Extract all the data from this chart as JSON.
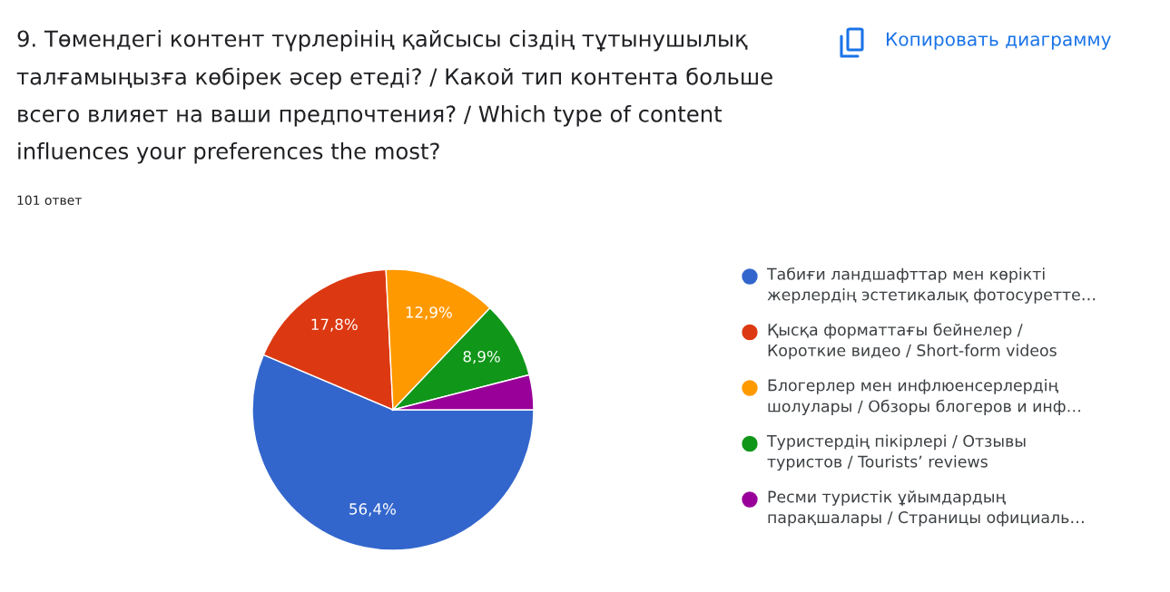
{
  "chart_data": {
    "type": "pie",
    "title": "9. Төмендегі контент түрлерінің қайсысы сіздің тұтынушылық талғамыңызға көбірек әсер етеді? / Какой тип контента больше всего влияет на ваши предпочтения? / Which type of content influences your preferences the most?",
    "subtitle": "101 ответ",
    "categories": [
      "Табиғи ландшафттар мен көрікті жерлердің эстетикалық фотосуретте…",
      "Қысқа форматтағы бейнелер / Короткие видео / Short-form videos",
      "Блогерлер мен инфлюенсерлердің шолулары / Обзоры блогеров и инф…",
      "Туристердің пікірлері / Отзывы туристов / Tourists’ reviews",
      "Ресми туристік ұйымдардың парақшалары / Страницы официаль…"
    ],
    "values": [
      56.4,
      17.8,
      12.9,
      8.9,
      4.0
    ],
    "colors": [
      "#3366cc",
      "#dc3912",
      "#ff9900",
      "#109618",
      "#990099"
    ],
    "value_labels": [
      "56,4%",
      "17,8%",
      "12,9%",
      "8,9%",
      null
    ],
    "legend": "right",
    "annotations": [
      "Копировать диаграмму"
    ]
  }
}
